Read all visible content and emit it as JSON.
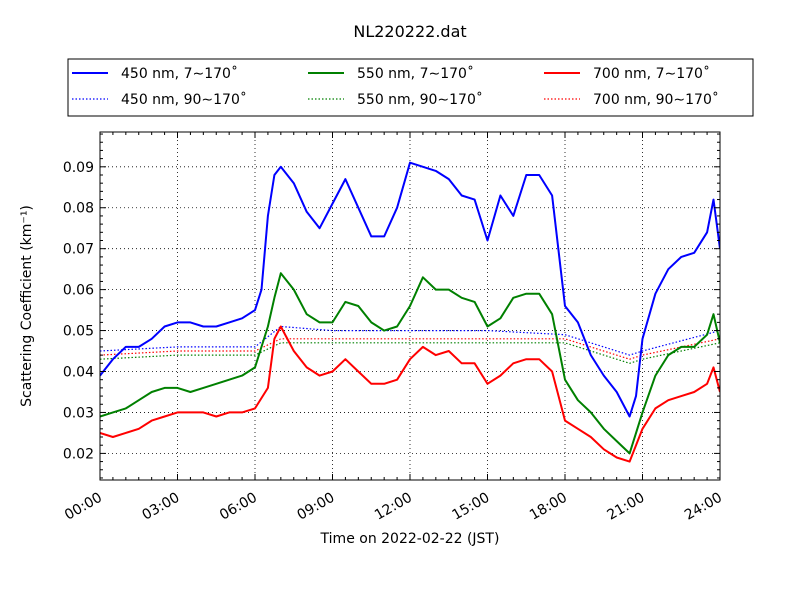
{
  "chart_data": {
    "type": "line",
    "title": "NL220222.dat",
    "xlabel": "Time on 2022-02-22 (JST)",
    "ylabel": "Scattering Coefficient (km⁻¹)",
    "x_ticks": [
      "00:00",
      "03:00",
      "06:00",
      "09:00",
      "12:00",
      "15:00",
      "18:00",
      "21:00",
      "24:00"
    ],
    "y_ticks": [
      "0.02",
      "0.03",
      "0.04",
      "0.05",
      "0.06",
      "0.07",
      "0.08",
      "0.09"
    ],
    "xlim": [
      "00:00",
      "24:00"
    ],
    "ylim": [
      0.0135,
      0.0985
    ],
    "grid": true,
    "legend_position": "top",
    "series": [
      {
        "name": "450 nm, 7∼170˚",
        "color": "#0000ff",
        "style": "solid",
        "x": [
          "00:00",
          "00:30",
          "01:00",
          "01:30",
          "02:00",
          "02:30",
          "03:00",
          "03:30",
          "04:00",
          "04:30",
          "05:00",
          "05:30",
          "06:00",
          "06:15",
          "06:30",
          "06:45",
          "07:00",
          "07:30",
          "08:00",
          "08:30",
          "09:00",
          "09:30",
          "10:00",
          "10:30",
          "11:00",
          "11:30",
          "12:00",
          "12:30",
          "13:00",
          "13:30",
          "14:00",
          "14:30",
          "15:00",
          "15:30",
          "16:00",
          "16:30",
          "17:00",
          "17:30",
          "18:00",
          "18:30",
          "19:00",
          "19:30",
          "20:00",
          "20:30",
          "20:45",
          "21:00",
          "21:30",
          "22:00",
          "22:30",
          "23:00",
          "23:30",
          "23:45",
          "24:00"
        ],
        "y": [
          0.039,
          0.043,
          0.046,
          0.046,
          0.048,
          0.051,
          0.052,
          0.052,
          0.051,
          0.051,
          0.052,
          0.053,
          0.055,
          0.06,
          0.078,
          0.088,
          0.09,
          0.086,
          0.079,
          0.075,
          0.081,
          0.087,
          0.08,
          0.073,
          0.073,
          0.08,
          0.091,
          0.09,
          0.089,
          0.087,
          0.083,
          0.082,
          0.072,
          0.083,
          0.078,
          0.088,
          0.088,
          0.083,
          0.056,
          0.052,
          0.044,
          0.039,
          0.035,
          0.029,
          0.034,
          0.048,
          0.059,
          0.065,
          0.068,
          0.069,
          0.074,
          0.082,
          0.07
        ]
      },
      {
        "name": "450 nm, 90∼170˚",
        "color": "#0000ff",
        "style": "dotted",
        "x": [
          "00:00",
          "03:00",
          "06:00",
          "07:00",
          "09:00",
          "12:00",
          "15:00",
          "18:00",
          "20:30",
          "21:00",
          "24:00"
        ],
        "y": [
          0.045,
          0.046,
          0.046,
          0.051,
          0.05,
          0.05,
          0.05,
          0.049,
          0.044,
          0.045,
          0.05
        ]
      },
      {
        "name": "550 nm, 7∼170˚",
        "color": "#008000",
        "style": "solid",
        "x": [
          "00:00",
          "00:30",
          "01:00",
          "01:30",
          "02:00",
          "02:30",
          "03:00",
          "03:30",
          "04:00",
          "04:30",
          "05:00",
          "05:30",
          "06:00",
          "06:30",
          "06:45",
          "07:00",
          "07:30",
          "08:00",
          "08:30",
          "09:00",
          "09:30",
          "10:00",
          "10:30",
          "11:00",
          "11:30",
          "12:00",
          "12:30",
          "13:00",
          "13:30",
          "14:00",
          "14:30",
          "15:00",
          "15:30",
          "16:00",
          "16:30",
          "17:00",
          "17:30",
          "18:00",
          "18:30",
          "19:00",
          "19:30",
          "20:00",
          "20:30",
          "21:00",
          "21:30",
          "22:00",
          "22:30",
          "23:00",
          "23:30",
          "23:45",
          "24:00"
        ],
        "y": [
          0.029,
          0.03,
          0.031,
          0.033,
          0.035,
          0.036,
          0.036,
          0.035,
          0.036,
          0.037,
          0.038,
          0.039,
          0.041,
          0.051,
          0.058,
          0.064,
          0.06,
          0.054,
          0.052,
          0.052,
          0.057,
          0.056,
          0.052,
          0.05,
          0.051,
          0.056,
          0.063,
          0.06,
          0.06,
          0.058,
          0.057,
          0.051,
          0.053,
          0.058,
          0.059,
          0.059,
          0.054,
          0.038,
          0.033,
          0.03,
          0.026,
          0.023,
          0.02,
          0.03,
          0.039,
          0.044,
          0.046,
          0.046,
          0.049,
          0.054,
          0.047
        ]
      },
      {
        "name": "550 nm, 90∼170˚",
        "color": "#008000",
        "style": "dotted",
        "x": [
          "00:00",
          "03:00",
          "06:00",
          "07:00",
          "09:00",
          "12:00",
          "15:00",
          "18:00",
          "20:30",
          "21:00",
          "24:00"
        ],
        "y": [
          0.043,
          0.044,
          0.044,
          0.047,
          0.047,
          0.047,
          0.047,
          0.047,
          0.042,
          0.043,
          0.047
        ]
      },
      {
        "name": "700 nm, 7∼170˚",
        "color": "#ff0000",
        "style": "solid",
        "x": [
          "00:00",
          "00:30",
          "01:00",
          "01:30",
          "02:00",
          "02:30",
          "03:00",
          "03:30",
          "04:00",
          "04:30",
          "05:00",
          "05:30",
          "06:00",
          "06:30",
          "06:45",
          "07:00",
          "07:30",
          "08:00",
          "08:30",
          "09:00",
          "09:30",
          "10:00",
          "10:30",
          "11:00",
          "11:30",
          "12:00",
          "12:30",
          "13:00",
          "13:30",
          "14:00",
          "14:30",
          "15:00",
          "15:30",
          "16:00",
          "16:30",
          "17:00",
          "17:30",
          "18:00",
          "18:30",
          "19:00",
          "19:30",
          "20:00",
          "20:30",
          "21:00",
          "21:30",
          "22:00",
          "22:30",
          "23:00",
          "23:30",
          "23:45",
          "24:00"
        ],
        "y": [
          0.025,
          0.024,
          0.025,
          0.026,
          0.028,
          0.029,
          0.03,
          0.03,
          0.03,
          0.029,
          0.03,
          0.03,
          0.031,
          0.036,
          0.048,
          0.051,
          0.045,
          0.041,
          0.039,
          0.04,
          0.043,
          0.04,
          0.037,
          0.037,
          0.038,
          0.043,
          0.046,
          0.044,
          0.045,
          0.042,
          0.042,
          0.037,
          0.039,
          0.042,
          0.043,
          0.043,
          0.04,
          0.028,
          0.026,
          0.024,
          0.021,
          0.019,
          0.018,
          0.026,
          0.031,
          0.033,
          0.034,
          0.035,
          0.037,
          0.041,
          0.035
        ]
      },
      {
        "name": "700 nm, 90∼170˚",
        "color": "#ff0000",
        "style": "dotted",
        "x": [
          "00:00",
          "03:00",
          "06:00",
          "07:00",
          "09:00",
          "12:00",
          "15:00",
          "18:00",
          "20:30",
          "21:00",
          "24:00"
        ],
        "y": [
          0.044,
          0.045,
          0.045,
          0.048,
          0.048,
          0.048,
          0.048,
          0.048,
          0.043,
          0.044,
          0.048
        ]
      }
    ]
  }
}
